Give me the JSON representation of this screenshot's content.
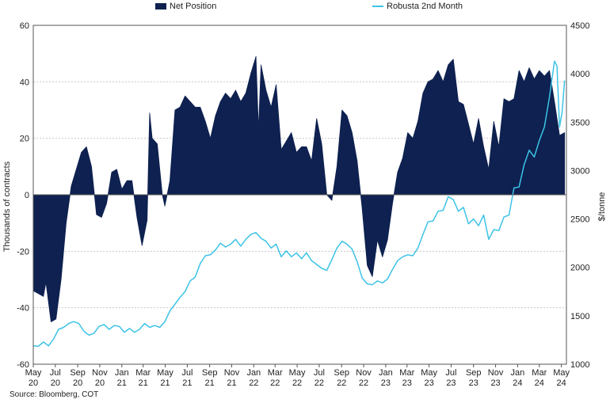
{
  "chart_data": {
    "type": "area+line",
    "title": "",
    "legend": [
      "Net Position",
      "Robusta 2nd Month"
    ],
    "legend_position": "top-center",
    "ylabel_left": "Thousands of contracts",
    "ylabel_right": "$/tonne",
    "ylim_left": [
      -60,
      60
    ],
    "ylim_right": [
      1000,
      4500
    ],
    "yticks_left": [
      "60",
      "40",
      "20",
      "0",
      "-20",
      "-40",
      "-60"
    ],
    "yticks_right": [
      "4500",
      "4000",
      "3500",
      "3000",
      "2500",
      "2000",
      "1500",
      "1000"
    ],
    "xticks": [
      [
        "May",
        "20"
      ],
      [
        "Jul",
        "20"
      ],
      [
        "Sep",
        "20"
      ],
      [
        "Nov",
        "20"
      ],
      [
        "Jan",
        "21"
      ],
      [
        "Mar",
        "21"
      ],
      [
        "May",
        "21"
      ],
      [
        "Jul",
        "21"
      ],
      [
        "Sep",
        "21"
      ],
      [
        "Nov",
        "21"
      ],
      [
        "Jan",
        "22"
      ],
      [
        "Mar",
        "22"
      ],
      [
        "May",
        "22"
      ],
      [
        "Jul",
        "22"
      ],
      [
        "Sep",
        "22"
      ],
      [
        "Nov",
        "22"
      ],
      [
        "Jan",
        "23"
      ],
      [
        "Mar",
        "23"
      ],
      [
        "May",
        "23"
      ],
      [
        "Jul",
        "23"
      ],
      [
        "Sep",
        "23"
      ],
      [
        "Nov",
        "23"
      ],
      [
        "Jan",
        "24"
      ],
      [
        "Mar",
        "24"
      ],
      [
        "May",
        "24"
      ]
    ],
    "grid": true,
    "series": [
      {
        "name": "Net Position",
        "axis": "left",
        "style": "area",
        "color": "#0e2150",
        "points": [
          [
            "2020-05-01",
            -34
          ],
          [
            "2020-05-15",
            -35
          ],
          [
            "2020-05-29",
            -36
          ],
          [
            "2020-06-05",
            -31
          ],
          [
            "2020-06-19",
            -45
          ],
          [
            "2020-07-03",
            -44
          ],
          [
            "2020-07-17",
            -30
          ],
          [
            "2020-07-31",
            -10
          ],
          [
            "2020-08-14",
            3
          ],
          [
            "2020-08-28",
            9
          ],
          [
            "2020-09-11",
            15
          ],
          [
            "2020-09-25",
            17
          ],
          [
            "2020-10-09",
            10
          ],
          [
            "2020-10-23",
            -7
          ],
          [
            "2020-11-06",
            -8
          ],
          [
            "2020-11-20",
            -3
          ],
          [
            "2020-12-04",
            8
          ],
          [
            "2020-12-18",
            9
          ],
          [
            "2021-01-01",
            2
          ],
          [
            "2021-01-15",
            5
          ],
          [
            "2021-01-29",
            5
          ],
          [
            "2021-02-12",
            -8
          ],
          [
            "2021-02-26",
            -18
          ],
          [
            "2021-03-12",
            -9
          ],
          [
            "2021-03-19",
            29
          ],
          [
            "2021-03-26",
            20
          ],
          [
            "2021-04-09",
            18
          ],
          [
            "2021-04-23",
            0
          ],
          [
            "2021-04-30",
            -4
          ],
          [
            "2021-05-14",
            5
          ],
          [
            "2021-05-28",
            30
          ],
          [
            "2021-06-11",
            31
          ],
          [
            "2021-06-25",
            35
          ],
          [
            "2021-07-09",
            33
          ],
          [
            "2021-07-23",
            31
          ],
          [
            "2021-08-06",
            31
          ],
          [
            "2021-08-20",
            26
          ],
          [
            "2021-09-03",
            20
          ],
          [
            "2021-09-17",
            28
          ],
          [
            "2021-10-01",
            33
          ],
          [
            "2021-10-15",
            36
          ],
          [
            "2021-10-29",
            34
          ],
          [
            "2021-11-12",
            37
          ],
          [
            "2021-11-26",
            33
          ],
          [
            "2021-12-10",
            36
          ],
          [
            "2021-12-24",
            43
          ],
          [
            "2022-01-07",
            49
          ],
          [
            "2022-01-14",
            23
          ],
          [
            "2022-01-21",
            46
          ],
          [
            "2022-02-04",
            37
          ],
          [
            "2022-02-18",
            31
          ],
          [
            "2022-03-04",
            39
          ],
          [
            "2022-03-18",
            16
          ],
          [
            "2022-04-01",
            19
          ],
          [
            "2022-04-15",
            22
          ],
          [
            "2022-04-29",
            15
          ],
          [
            "2022-05-13",
            17
          ],
          [
            "2022-05-27",
            17
          ],
          [
            "2022-06-10",
            12
          ],
          [
            "2022-06-24",
            27
          ],
          [
            "2022-07-08",
            18
          ],
          [
            "2022-07-22",
            0
          ],
          [
            "2022-08-05",
            -2
          ],
          [
            "2022-08-19",
            10
          ],
          [
            "2022-09-02",
            30
          ],
          [
            "2022-09-16",
            28
          ],
          [
            "2022-09-30",
            22
          ],
          [
            "2022-10-14",
            12
          ],
          [
            "2022-10-28",
            -5
          ],
          [
            "2022-11-11",
            -25
          ],
          [
            "2022-11-25",
            -29
          ],
          [
            "2022-12-09",
            -16
          ],
          [
            "2022-12-23",
            -22
          ],
          [
            "2023-01-06",
            -16
          ],
          [
            "2023-01-20",
            -3
          ],
          [
            "2023-02-03",
            8
          ],
          [
            "2023-02-17",
            13
          ],
          [
            "2023-03-03",
            22
          ],
          [
            "2023-03-17",
            20
          ],
          [
            "2023-03-31",
            26
          ],
          [
            "2023-04-14",
            36
          ],
          [
            "2023-04-28",
            40
          ],
          [
            "2023-05-12",
            41
          ],
          [
            "2023-05-26",
            44
          ],
          [
            "2023-06-09",
            40
          ],
          [
            "2023-06-23",
            46
          ],
          [
            "2023-07-07",
            48
          ],
          [
            "2023-07-21",
            33
          ],
          [
            "2023-08-04",
            32
          ],
          [
            "2023-08-18",
            25
          ],
          [
            "2023-09-01",
            18
          ],
          [
            "2023-09-15",
            27
          ],
          [
            "2023-09-29",
            17
          ],
          [
            "2023-10-13",
            9
          ],
          [
            "2023-10-27",
            26
          ],
          [
            "2023-11-10",
            17
          ],
          [
            "2023-11-24",
            34
          ],
          [
            "2023-12-08",
            33
          ],
          [
            "2023-12-22",
            34
          ],
          [
            "2024-01-05",
            44
          ],
          [
            "2024-01-19",
            40
          ],
          [
            "2024-02-02",
            45
          ],
          [
            "2024-02-16",
            41
          ],
          [
            "2024-03-01",
            44
          ],
          [
            "2024-03-15",
            42
          ],
          [
            "2024-03-29",
            44
          ],
          [
            "2024-04-12",
            33
          ],
          [
            "2024-04-26",
            21
          ],
          [
            "2024-05-10",
            22
          ]
        ]
      },
      {
        "name": "Robusta 2nd Month",
        "axis": "right",
        "style": "line",
        "color": "#3cc3e6",
        "points": [
          [
            "2020-05-01",
            1190
          ],
          [
            "2020-05-15",
            1185
          ],
          [
            "2020-05-29",
            1230
          ],
          [
            "2020-06-12",
            1190
          ],
          [
            "2020-06-26",
            1260
          ],
          [
            "2020-07-10",
            1360
          ],
          [
            "2020-07-24",
            1380
          ],
          [
            "2020-08-07",
            1420
          ],
          [
            "2020-08-21",
            1440
          ],
          [
            "2020-09-04",
            1420
          ],
          [
            "2020-09-18",
            1340
          ],
          [
            "2020-10-02",
            1300
          ],
          [
            "2020-10-16",
            1320
          ],
          [
            "2020-10-30",
            1390
          ],
          [
            "2020-11-13",
            1410
          ],
          [
            "2020-11-27",
            1360
          ],
          [
            "2020-12-11",
            1400
          ],
          [
            "2020-12-25",
            1390
          ],
          [
            "2021-01-08",
            1330
          ],
          [
            "2021-01-22",
            1370
          ],
          [
            "2021-02-05",
            1330
          ],
          [
            "2021-02-19",
            1360
          ],
          [
            "2021-03-05",
            1420
          ],
          [
            "2021-03-19",
            1380
          ],
          [
            "2021-04-02",
            1400
          ],
          [
            "2021-04-16",
            1380
          ],
          [
            "2021-04-30",
            1440
          ],
          [
            "2021-05-14",
            1550
          ],
          [
            "2021-05-28",
            1620
          ],
          [
            "2021-06-11",
            1690
          ],
          [
            "2021-06-25",
            1750
          ],
          [
            "2021-07-09",
            1860
          ],
          [
            "2021-07-23",
            1900
          ],
          [
            "2021-08-06",
            2040
          ],
          [
            "2021-08-20",
            2120
          ],
          [
            "2021-09-03",
            2130
          ],
          [
            "2021-09-17",
            2180
          ],
          [
            "2021-10-01",
            2250
          ],
          [
            "2021-10-15",
            2210
          ],
          [
            "2021-10-29",
            2240
          ],
          [
            "2021-11-12",
            2290
          ],
          [
            "2021-11-26",
            2220
          ],
          [
            "2021-12-10",
            2290
          ],
          [
            "2021-12-24",
            2340
          ],
          [
            "2022-01-07",
            2360
          ],
          [
            "2022-01-21",
            2300
          ],
          [
            "2022-02-04",
            2270
          ],
          [
            "2022-02-18",
            2200
          ],
          [
            "2022-03-04",
            2240
          ],
          [
            "2022-03-18",
            2110
          ],
          [
            "2022-04-01",
            2170
          ],
          [
            "2022-04-15",
            2110
          ],
          [
            "2022-04-29",
            2150
          ],
          [
            "2022-05-13",
            2090
          ],
          [
            "2022-05-27",
            2150
          ],
          [
            "2022-06-10",
            2070
          ],
          [
            "2022-06-24",
            2030
          ],
          [
            "2022-07-08",
            1990
          ],
          [
            "2022-07-22",
            1970
          ],
          [
            "2022-08-05",
            2080
          ],
          [
            "2022-08-19",
            2200
          ],
          [
            "2022-09-02",
            2270
          ],
          [
            "2022-09-16",
            2240
          ],
          [
            "2022-09-30",
            2190
          ],
          [
            "2022-10-14",
            2060
          ],
          [
            "2022-10-28",
            1890
          ],
          [
            "2022-11-11",
            1830
          ],
          [
            "2022-11-25",
            1820
          ],
          [
            "2022-12-09",
            1860
          ],
          [
            "2022-12-23",
            1840
          ],
          [
            "2023-01-06",
            1880
          ],
          [
            "2023-01-20",
            1980
          ],
          [
            "2023-02-03",
            2070
          ],
          [
            "2023-02-17",
            2110
          ],
          [
            "2023-03-03",
            2130
          ],
          [
            "2023-03-17",
            2120
          ],
          [
            "2023-03-31",
            2200
          ],
          [
            "2023-04-14",
            2340
          ],
          [
            "2023-04-28",
            2470
          ],
          [
            "2023-05-12",
            2480
          ],
          [
            "2023-05-26",
            2580
          ],
          [
            "2023-06-09",
            2590
          ],
          [
            "2023-06-23",
            2730
          ],
          [
            "2023-07-07",
            2700
          ],
          [
            "2023-07-21",
            2580
          ],
          [
            "2023-08-04",
            2620
          ],
          [
            "2023-08-18",
            2450
          ],
          [
            "2023-09-01",
            2500
          ],
          [
            "2023-09-15",
            2430
          ],
          [
            "2023-09-29",
            2540
          ],
          [
            "2023-10-13",
            2290
          ],
          [
            "2023-10-27",
            2390
          ],
          [
            "2023-11-10",
            2380
          ],
          [
            "2023-11-24",
            2520
          ],
          [
            "2023-12-08",
            2540
          ],
          [
            "2023-12-22",
            2820
          ],
          [
            "2024-01-05",
            2830
          ],
          [
            "2024-01-19",
            3060
          ],
          [
            "2024-02-02",
            3210
          ],
          [
            "2024-02-16",
            3140
          ],
          [
            "2024-03-01",
            3310
          ],
          [
            "2024-03-15",
            3450
          ],
          [
            "2024-03-29",
            3760
          ],
          [
            "2024-04-12",
            4130
          ],
          [
            "2024-04-19",
            4080
          ],
          [
            "2024-04-26",
            3450
          ],
          [
            "2024-05-03",
            3600
          ],
          [
            "2024-05-10",
            3930
          ]
        ]
      }
    ]
  },
  "source": "Source: Bloomberg, COT"
}
